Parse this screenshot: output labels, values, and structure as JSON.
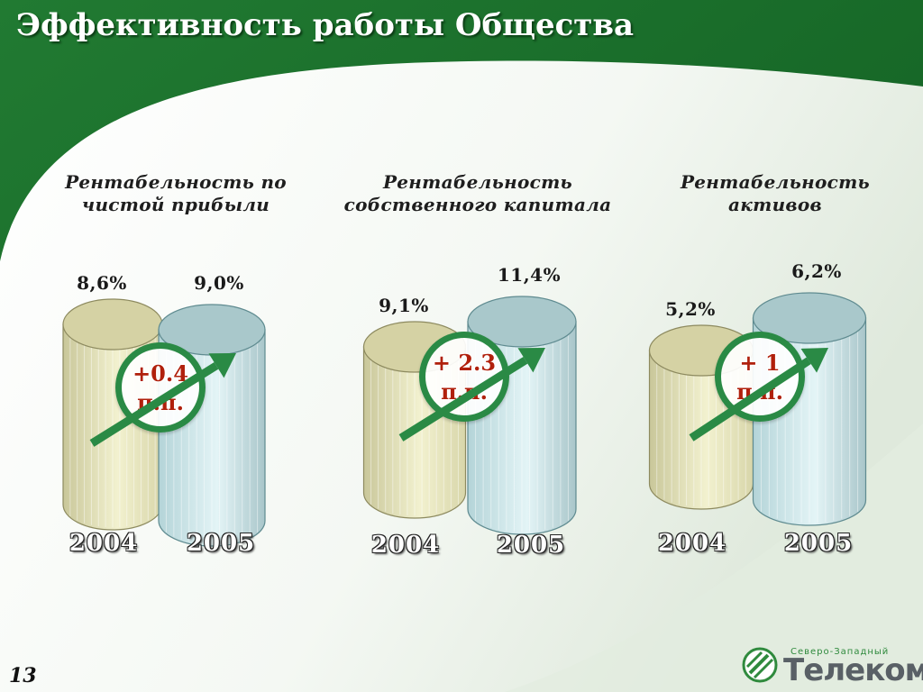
{
  "header": {
    "title": "Эффективность работы Общества"
  },
  "footer": {
    "page_number": "13",
    "logo": {
      "top_text": "Северо-Западный",
      "main_text": "Телеком"
    }
  },
  "colors": {
    "header_green": "#1b6b2b",
    "bar_2004": "#e9e8c2",
    "bar_2005": "#d4ecee",
    "badge_green": "#2a8a45",
    "delta_red": "#b0200c"
  },
  "chart_data": [
    {
      "type": "bar",
      "title": "Рентабельность по чистой прибыли",
      "categories": [
        "2004",
        "2005"
      ],
      "values": [
        8.6,
        9.0
      ],
      "value_labels": [
        "8,6%",
        "9,0%"
      ],
      "unit": "%",
      "annotation": [
        "+0.4",
        "п.п."
      ]
    },
    {
      "type": "bar",
      "title": "Рентабельность собственного капитала",
      "categories": [
        "2004",
        "2005"
      ],
      "values": [
        9.1,
        11.4
      ],
      "value_labels": [
        "9,1%",
        "11,4%"
      ],
      "unit": "%",
      "annotation": [
        "+ 2.3",
        "п.п."
      ]
    },
    {
      "type": "bar",
      "title": "Рентабельность активов",
      "categories": [
        "2004",
        "2005"
      ],
      "values": [
        5.2,
        6.2
      ],
      "value_labels": [
        "5,2%",
        "6,2%"
      ],
      "unit": "%",
      "annotation": [
        "+ 1",
        "п.п."
      ]
    }
  ]
}
